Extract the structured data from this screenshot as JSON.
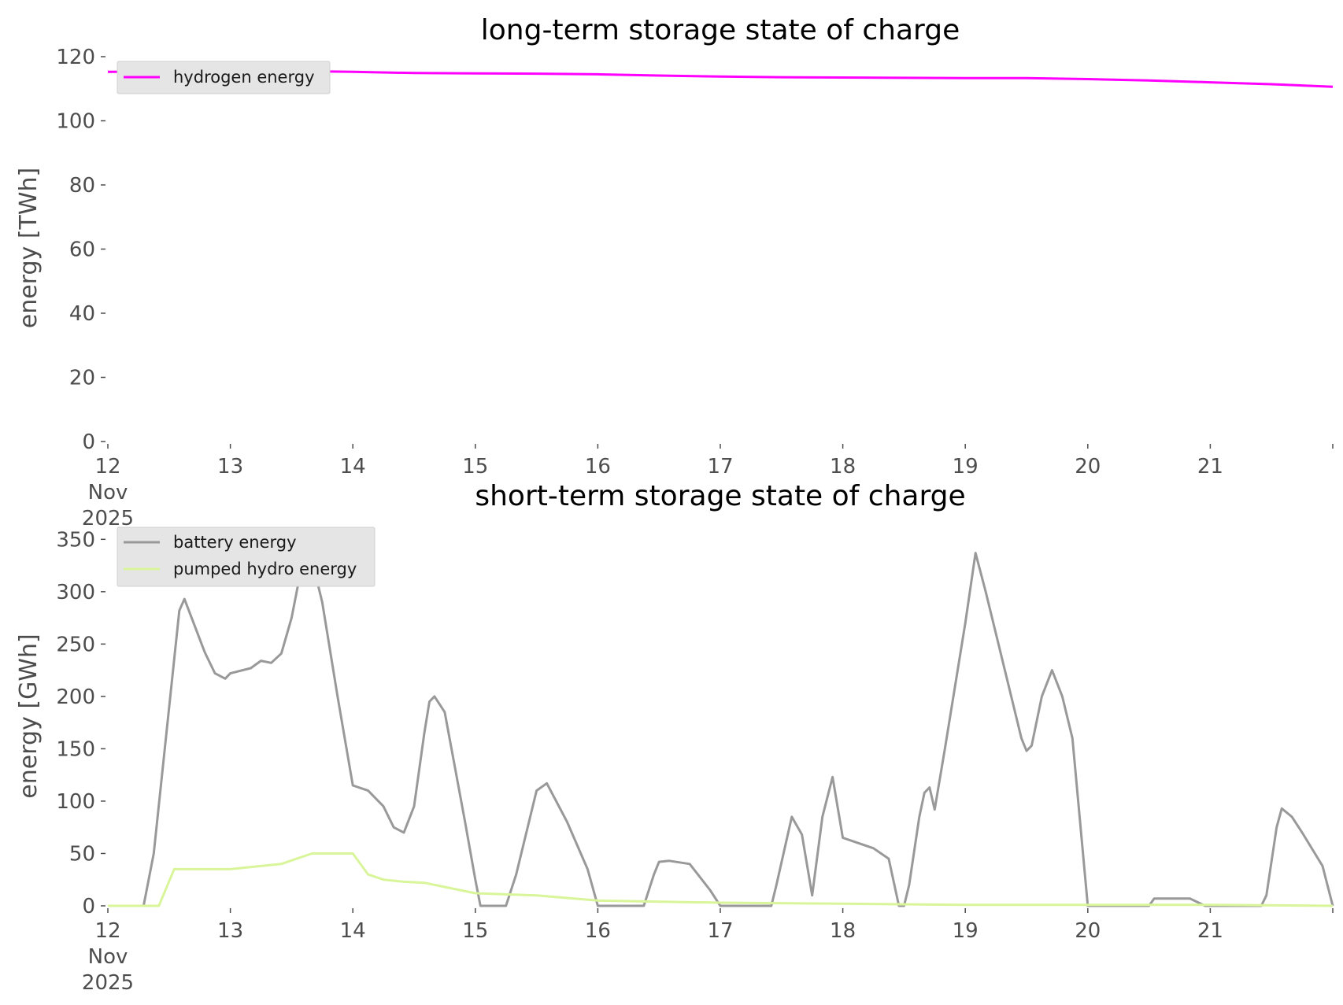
{
  "chart_data": [
    {
      "type": "line",
      "title": "long-term storage state of charge",
      "xlabel": "",
      "ylabel": "energy [TWh]",
      "xlim": [
        "2025-11-12",
        "2025-11-22"
      ],
      "ylim": [
        0,
        120
      ],
      "yticks": [
        0,
        20,
        40,
        60,
        80,
        100,
        120
      ],
      "xticks": [
        {
          "date": "2025-11-12",
          "label": [
            "12",
            "Nov",
            "2025"
          ]
        },
        {
          "date": "2025-11-13",
          "label": [
            "13"
          ]
        },
        {
          "date": "2025-11-14",
          "label": [
            "14"
          ]
        },
        {
          "date": "2025-11-15",
          "label": [
            "15"
          ]
        },
        {
          "date": "2025-11-16",
          "label": [
            "16"
          ]
        },
        {
          "date": "2025-11-17",
          "label": [
            "17"
          ]
        },
        {
          "date": "2025-11-18",
          "label": [
            "18"
          ]
        },
        {
          "date": "2025-11-19",
          "label": [
            "19"
          ]
        },
        {
          "date": "2025-11-20",
          "label": [
            "20"
          ]
        },
        {
          "date": "2025-11-21",
          "label": [
            "21"
          ]
        },
        {
          "date": "2025-11-22",
          "label": [
            ""
          ]
        }
      ],
      "grid": false,
      "legend": "top-left",
      "series": [
        {
          "name": "hydrogen energy",
          "color": "#ff00ff",
          "points": [
            [
              "2025-11-12 00:00",
              115.3
            ],
            [
              "2025-11-12 12:00",
              115.3
            ],
            [
              "2025-11-13 00:00",
              115.4
            ],
            [
              "2025-11-13 12:00",
              115.5
            ],
            [
              "2025-11-14 00:00",
              115.3
            ],
            [
              "2025-11-14 12:00",
              114.9
            ],
            [
              "2025-11-15 00:00",
              114.8
            ],
            [
              "2025-11-15 12:00",
              114.7
            ],
            [
              "2025-11-16 00:00",
              114.5
            ],
            [
              "2025-11-16 12:00",
              114.1
            ],
            [
              "2025-11-17 00:00",
              113.8
            ],
            [
              "2025-11-17 12:00",
              113.6
            ],
            [
              "2025-11-18 00:00",
              113.5
            ],
            [
              "2025-11-18 12:00",
              113.4
            ],
            [
              "2025-11-19 00:00",
              113.3
            ],
            [
              "2025-11-19 12:00",
              113.3
            ],
            [
              "2025-11-20 00:00",
              113.0
            ],
            [
              "2025-11-20 12:00",
              112.6
            ],
            [
              "2025-11-21 00:00",
              112.0
            ],
            [
              "2025-11-21 12:00",
              111.4
            ],
            [
              "2025-11-22 00:00",
              110.6
            ]
          ]
        }
      ]
    },
    {
      "type": "line",
      "title": "short-term storage state of charge",
      "xlabel": "",
      "ylabel": "energy [GWh]",
      "xlim": [
        "2025-11-12",
        "2025-11-22"
      ],
      "ylim": [
        0,
        360
      ],
      "yticks": [
        0,
        50,
        100,
        150,
        200,
        250,
        300,
        350
      ],
      "xticks": [
        {
          "date": "2025-11-12",
          "label": [
            "12",
            "Nov",
            "2025"
          ]
        },
        {
          "date": "2025-11-13",
          "label": [
            "13"
          ]
        },
        {
          "date": "2025-11-14",
          "label": [
            "14"
          ]
        },
        {
          "date": "2025-11-15",
          "label": [
            "15"
          ]
        },
        {
          "date": "2025-11-16",
          "label": [
            "16"
          ]
        },
        {
          "date": "2025-11-17",
          "label": [
            "17"
          ]
        },
        {
          "date": "2025-11-18",
          "label": [
            "18"
          ]
        },
        {
          "date": "2025-11-19",
          "label": [
            "19"
          ]
        },
        {
          "date": "2025-11-20",
          "label": [
            "20"
          ]
        },
        {
          "date": "2025-11-21",
          "label": [
            "21"
          ]
        },
        {
          "date": "2025-11-22",
          "label": [
            ""
          ]
        }
      ],
      "grid": false,
      "legend": "top-left",
      "series": [
        {
          "name": "battery energy",
          "color": "#999999",
          "points": [
            [
              "2025-11-12 00:00",
              0
            ],
            [
              "2025-11-12 07:00",
              0
            ],
            [
              "2025-11-12 09:00",
              50
            ],
            [
              "2025-11-12 14:00",
              282
            ],
            [
              "2025-11-12 15:00",
              293
            ],
            [
              "2025-11-12 19:00",
              242
            ],
            [
              "2025-11-12 21:00",
              222
            ],
            [
              "2025-11-12 23:00",
              217
            ],
            [
              "2025-11-13 00:00",
              222
            ],
            [
              "2025-11-13 04:00",
              227
            ],
            [
              "2025-11-13 06:00",
              234
            ],
            [
              "2025-11-13 08:00",
              232
            ],
            [
              "2025-11-13 10:00",
              241
            ],
            [
              "2025-11-13 12:00",
              275
            ],
            [
              "2025-11-13 15:00",
              350
            ],
            [
              "2025-11-13 18:00",
              290
            ],
            [
              "2025-11-13 21:00",
              200
            ],
            [
              "2025-11-14 00:00",
              115
            ],
            [
              "2025-11-14 03:00",
              110
            ],
            [
              "2025-11-14 06:00",
              95
            ],
            [
              "2025-11-14 08:00",
              75
            ],
            [
              "2025-11-14 10:00",
              70
            ],
            [
              "2025-11-14 12:00",
              95
            ],
            [
              "2025-11-14 14:00",
              165
            ],
            [
              "2025-11-14 15:00",
              195
            ],
            [
              "2025-11-14 16:00",
              200
            ],
            [
              "2025-11-14 18:00",
              185
            ],
            [
              "2025-11-14 22:00",
              80
            ],
            [
              "2025-11-15 00:00",
              25
            ],
            [
              "2025-11-15 01:00",
              0
            ],
            [
              "2025-11-15 06:00",
              0
            ],
            [
              "2025-11-15 08:00",
              30
            ],
            [
              "2025-11-15 12:00",
              110
            ],
            [
              "2025-11-15 14:00",
              117
            ],
            [
              "2025-11-15 18:00",
              80
            ],
            [
              "2025-11-15 22:00",
              35
            ],
            [
              "2025-11-16 00:00",
              0
            ],
            [
              "2025-11-16 09:00",
              0
            ],
            [
              "2025-11-16 11:00",
              30
            ],
            [
              "2025-11-16 12:00",
              42
            ],
            [
              "2025-11-16 14:00",
              43
            ],
            [
              "2025-11-16 18:00",
              40
            ],
            [
              "2025-11-16 22:00",
              15
            ],
            [
              "2025-11-17 00:00",
              0
            ],
            [
              "2025-11-17 10:00",
              0
            ],
            [
              "2025-11-17 11:00",
              20
            ],
            [
              "2025-11-17 14:00",
              85
            ],
            [
              "2025-11-17 16:00",
              68
            ],
            [
              "2025-11-17 18:00",
              10
            ],
            [
              "2025-11-17 20:00",
              85
            ],
            [
              "2025-11-17 22:00",
              123
            ],
            [
              "2025-11-18 00:00",
              65
            ],
            [
              "2025-11-18 03:00",
              60
            ],
            [
              "2025-11-18 06:00",
              55
            ],
            [
              "2025-11-18 09:00",
              45
            ],
            [
              "2025-11-18 11:00",
              0
            ],
            [
              "2025-11-18 12:00",
              0
            ],
            [
              "2025-11-18 13:00",
              20
            ],
            [
              "2025-11-18 15:00",
              85
            ],
            [
              "2025-11-18 16:00",
              108
            ],
            [
              "2025-11-18 17:00",
              113
            ],
            [
              "2025-11-18 18:00",
              92
            ],
            [
              "2025-11-18 20:00",
              150
            ],
            [
              "2025-11-19 00:00",
              270
            ],
            [
              "2025-11-19 02:00",
              337
            ],
            [
              "2025-11-19 04:00",
              300
            ],
            [
              "2025-11-19 08:00",
              220
            ],
            [
              "2025-11-19 11:00",
              160
            ],
            [
              "2025-11-19 12:00",
              148
            ],
            [
              "2025-11-19 13:00",
              153
            ],
            [
              "2025-11-19 15:00",
              200
            ],
            [
              "2025-11-19 17:00",
              225
            ],
            [
              "2025-11-19 19:00",
              200
            ],
            [
              "2025-11-19 21:00",
              160
            ],
            [
              "2025-11-20 00:00",
              0
            ],
            [
              "2025-11-20 12:00",
              0
            ],
            [
              "2025-11-20 13:00",
              7
            ],
            [
              "2025-11-20 20:00",
              7
            ],
            [
              "2025-11-20 23:00",
              0
            ],
            [
              "2025-11-21 10:00",
              0
            ],
            [
              "2025-11-21 11:00",
              10
            ],
            [
              "2025-11-21 13:00",
              75
            ],
            [
              "2025-11-21 14:00",
              93
            ],
            [
              "2025-11-21 16:00",
              85
            ],
            [
              "2025-11-21 18:00",
              70
            ],
            [
              "2025-11-21 22:00",
              38
            ],
            [
              "2025-11-22 00:00",
              0
            ]
          ]
        },
        {
          "name": "pumped hydro energy",
          "color": "#d9f59a",
          "points": [
            [
              "2025-11-12 00:00",
              0
            ],
            [
              "2025-11-12 10:00",
              0
            ],
            [
              "2025-11-12 13:00",
              35
            ],
            [
              "2025-11-13 00:00",
              35
            ],
            [
              "2025-11-13 06:00",
              38
            ],
            [
              "2025-11-13 10:00",
              40
            ],
            [
              "2025-11-13 13:00",
              45
            ],
            [
              "2025-11-13 16:00",
              50
            ],
            [
              "2025-11-14 00:00",
              50
            ],
            [
              "2025-11-14 03:00",
              30
            ],
            [
              "2025-11-14 06:00",
              25
            ],
            [
              "2025-11-14 10:00",
              23
            ],
            [
              "2025-11-14 14:00",
              22
            ],
            [
              "2025-11-14 18:00",
              18
            ],
            [
              "2025-11-15 00:00",
              12
            ],
            [
              "2025-11-15 12:00",
              10
            ],
            [
              "2025-11-16 00:00",
              5
            ],
            [
              "2025-11-17 00:00",
              3
            ],
            [
              "2025-11-18 00:00",
              2
            ],
            [
              "2025-11-19 00:00",
              1
            ],
            [
              "2025-11-20 00:00",
              1
            ],
            [
              "2025-11-21 00:00",
              1
            ],
            [
              "2025-11-22 00:00",
              0
            ]
          ]
        }
      ]
    }
  ]
}
